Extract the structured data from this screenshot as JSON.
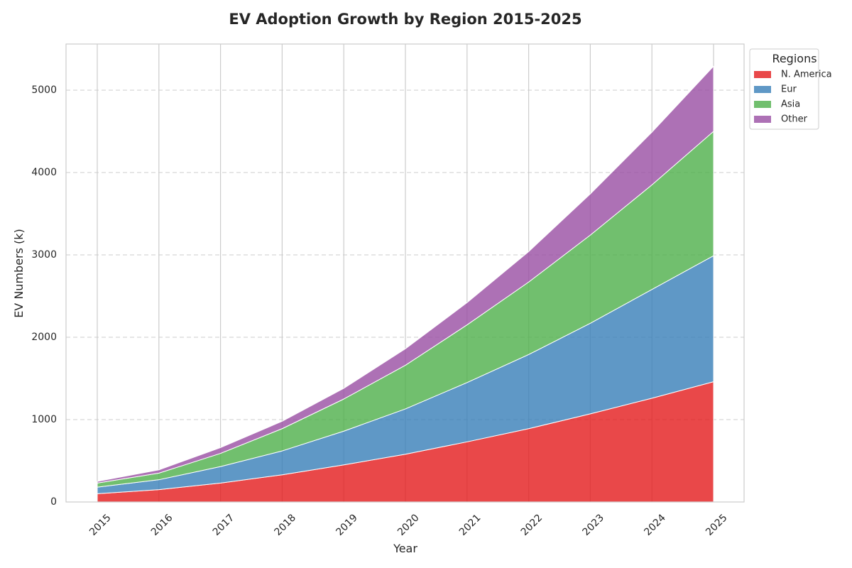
{
  "chart_data": {
    "type": "area",
    "stacked": true,
    "title": "EV Adoption Growth by Region 2015-2025",
    "xlabel": "Year",
    "ylabel": "EV Numbers (k)",
    "x": [
      "2015",
      "2016",
      "2017",
      "2018",
      "2019",
      "2020",
      "2021",
      "2022",
      "2023",
      "2024",
      "2025"
    ],
    "ylim": [
      0,
      5560
    ],
    "yticks": [
      0,
      1000,
      2000,
      3000,
      4000,
      5000
    ],
    "grid": {
      "x": "solid",
      "y": "dashed"
    },
    "legend": {
      "title": "Regions",
      "placement": "outside top-right"
    },
    "series": [
      {
        "name": "N. America",
        "color": "#e41a1c",
        "values": [
          100,
          150,
          230,
          330,
          450,
          580,
          730,
          890,
          1070,
          1260,
          1460
        ]
      },
      {
        "name": "Eur",
        "color": "#377eb8",
        "values": [
          80,
          120,
          200,
          290,
          410,
          550,
          720,
          900,
          1100,
          1320,
          1530
        ]
      },
      {
        "name": "Asia",
        "color": "#4daf4a",
        "values": [
          50,
          80,
          160,
          270,
          390,
          530,
          700,
          880,
          1070,
          1270,
          1510
        ]
      },
      {
        "name": "Other",
        "color": "#984ea3",
        "values": [
          20,
          40,
          70,
          90,
          130,
          200,
          270,
          370,
          500,
          640,
          790
        ]
      }
    ]
  }
}
